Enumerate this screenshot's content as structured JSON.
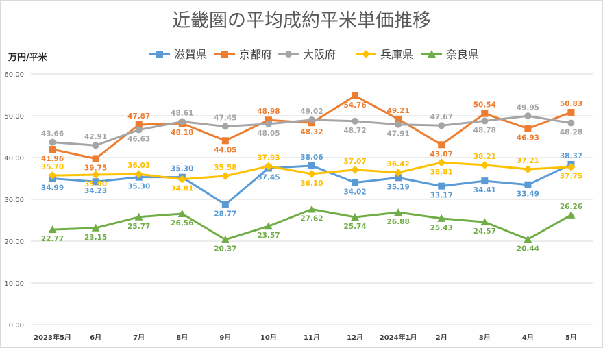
{
  "chart_data": {
    "type": "line",
    "title": "近畿圏の平均成約平米単価推移",
    "ylabel": "万円/平米",
    "xlabel": "",
    "ylim": [
      0,
      60
    ],
    "yticks": [
      "0.00",
      "10.00",
      "20.00",
      "30.00",
      "40.00",
      "50.00",
      "60.00"
    ],
    "grid": true,
    "legend_position": "top",
    "categories": [
      "2023年5月",
      "6月",
      "7月",
      "8月",
      "9月",
      "10月",
      "11月",
      "12月",
      "2024年1月",
      "2月",
      "3月",
      "4月",
      "5月"
    ],
    "series": [
      {
        "name": "滋賀県",
        "color": "#5b9bd5",
        "marker": "square",
        "values": [
          34.99,
          34.23,
          35.3,
          35.3,
          28.77,
          37.45,
          38.06,
          34.02,
          35.19,
          33.17,
          34.41,
          33.49,
          38.37
        ],
        "labels": [
          "34.99",
          "34.23",
          "35.30",
          "35.30",
          "28.77",
          "37.45",
          "38.06",
          "34.02",
          "35.19",
          "33.17",
          "34.41",
          "33.49",
          "38.37"
        ],
        "label_pos": [
          "below",
          "below",
          "below",
          "above",
          "below",
          "below",
          "above",
          "below",
          "below",
          "below",
          "below",
          "below",
          "above"
        ]
      },
      {
        "name": "京都府",
        "color": "#ed7d31",
        "marker": "square",
        "values": [
          41.96,
          39.75,
          47.87,
          48.18,
          44.05,
          48.98,
          48.32,
          54.76,
          49.21,
          43.07,
          50.54,
          46.93,
          50.83
        ],
        "labels": [
          "41.96",
          "39.75",
          "47.87",
          "48.18",
          "44.05",
          "48.98",
          "48.32",
          "54.76",
          "49.21",
          "43.07",
          "50.54",
          "46.93",
          "50.83"
        ],
        "label_pos": [
          "below",
          "below",
          "above",
          "below",
          "below",
          "above",
          "below",
          "below",
          "above",
          "below",
          "above",
          "below",
          "above"
        ]
      },
      {
        "name": "大阪府",
        "color": "#a5a5a5",
        "marker": "circle",
        "values": [
          43.66,
          42.91,
          46.63,
          48.61,
          47.45,
          48.05,
          49.02,
          48.72,
          47.91,
          47.67,
          48.78,
          49.95,
          48.28
        ],
        "labels": [
          "43.66",
          "42.91",
          "46.63",
          "48.61",
          "47.45",
          "48.05",
          "49.02",
          "48.72",
          "47.91",
          "47.67",
          "48.78",
          "49.95",
          "48.28"
        ],
        "label_pos": [
          "above",
          "above",
          "below",
          "above",
          "above",
          "below",
          "above",
          "below",
          "below",
          "above",
          "below",
          "above",
          "below"
        ]
      },
      {
        "name": "兵庫県",
        "color": "#ffc000",
        "marker": "diamond",
        "values": [
          35.7,
          35.9,
          36.03,
          34.81,
          35.58,
          37.93,
          36.1,
          37.07,
          36.42,
          38.81,
          38.21,
          37.21,
          37.75
        ],
        "labels": [
          "35.70",
          "35.90",
          "36.03",
          "34.81",
          "35.58",
          "37.93",
          "36.10",
          "37.07",
          "36.42",
          "38.81",
          "38.21",
          "37.21",
          "37.75"
        ],
        "label_pos": [
          "above",
          "below",
          "above",
          "below",
          "above",
          "above",
          "below",
          "above",
          "above",
          "below",
          "above",
          "above",
          "below"
        ]
      },
      {
        "name": "奈良県",
        "color": "#70ad47",
        "marker": "triangle",
        "values": [
          22.77,
          23.15,
          25.77,
          26.56,
          20.37,
          23.57,
          27.62,
          25.74,
          26.88,
          25.43,
          24.57,
          20.44,
          26.26
        ],
        "labels": [
          "22.77",
          "23.15",
          "25.77",
          "26.56",
          "20.37",
          "23.57",
          "27.62",
          "25.74",
          "26.88",
          "25.43",
          "24.57",
          "20.44",
          "26.26"
        ],
        "label_pos": [
          "below",
          "below",
          "below",
          "below",
          "below",
          "below",
          "below",
          "below",
          "below",
          "below",
          "below",
          "below",
          "above"
        ]
      }
    ]
  }
}
